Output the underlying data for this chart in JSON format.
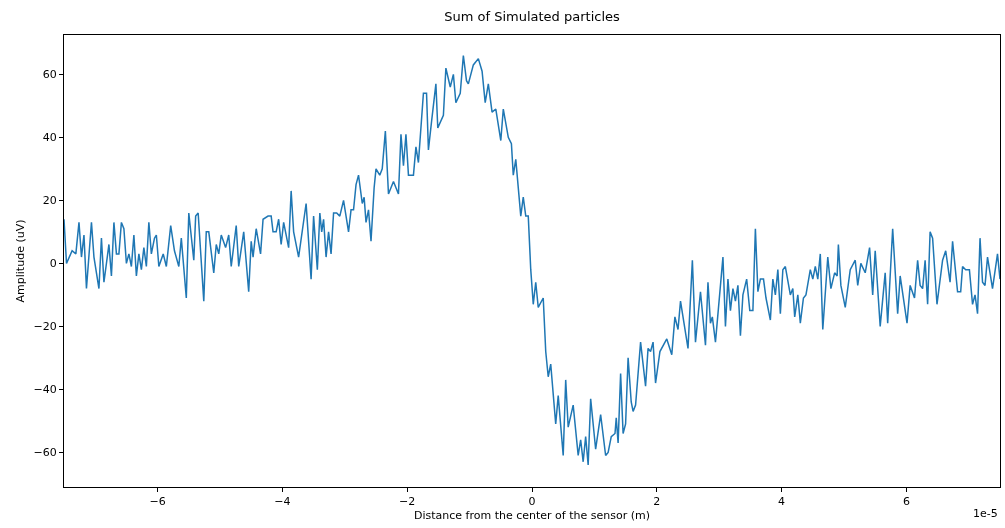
{
  "chart_data": {
    "type": "line",
    "title": "Sum of Simulated particles",
    "xlabel": "Distance from the center of the sensor (m)",
    "ylabel": "Amplitude (uV)",
    "annotations": [
      "1e-5"
    ],
    "xlim": [
      -7.5,
      7.5
    ],
    "ylim": [
      -71,
      72.5
    ],
    "xticks": [
      {
        "value": -6,
        "label": "−6"
      },
      {
        "value": -4,
        "label": "−4"
      },
      {
        "value": -2,
        "label": "−2"
      },
      0,
      2,
      4,
      6
    ],
    "yticks": [
      {
        "value": -60,
        "label": "−60"
      },
      {
        "value": -40,
        "label": "−40"
      },
      {
        "value": -20,
        "label": "−20"
      },
      0,
      20,
      40,
      60
    ],
    "grid": false,
    "legend": false,
    "marker": "none",
    "line_style": "solid",
    "x": [
      -7.5,
      -7.46,
      -7.37,
      -7.31,
      -7.26,
      -7.22,
      -7.18,
      -7.14,
      -7.06,
      -7.02,
      -6.94,
      -6.9,
      -6.86,
      -6.78,
      -6.74,
      -6.7,
      -6.66,
      -6.62,
      -6.58,
      -6.54,
      -6.5,
      -6.46,
      -6.42,
      -6.38,
      -6.34,
      -6.3,
      -6.26,
      -6.22,
      -6.18,
      -6.14,
      -6.1,
      -6.05,
      -6.02,
      -5.98,
      -5.91,
      -5.86,
      -5.79,
      -5.73,
      -5.66,
      -5.62,
      -5.54,
      -5.5,
      -5.42,
      -5.39,
      -5.35,
      -5.26,
      -5.22,
      -5.18,
      -5.1,
      -5.06,
      -5.02,
      -4.98,
      -4.91,
      -4.86,
      -4.82,
      -4.74,
      -4.7,
      -4.62,
      -4.54,
      -4.5,
      -4.47,
      -4.42,
      -4.35,
      -4.31,
      -4.23,
      -4.18,
      -4.15,
      -4.1,
      -4.06,
      -4.02,
      -3.98,
      -3.9,
      -3.86,
      -3.82,
      -3.74,
      -3.62,
      -3.54,
      -3.5,
      -3.44,
      -3.4,
      -3.37,
      -3.34,
      -3.3,
      -3.26,
      -3.22,
      -3.18,
      -3.13,
      -3.08,
      -3.02,
      -2.94,
      -2.9,
      -2.86,
      -2.82,
      -2.78,
      -2.72,
      -2.69,
      -2.66,
      -2.62,
      -2.58,
      -2.53,
      -2.5,
      -2.44,
      -2.4,
      -2.35,
      -2.3,
      -2.22,
      -2.14,
      -2.1,
      -2.06,
      -2.02,
      -1.98,
      -1.9,
      -1.86,
      -1.82,
      -1.74,
      -1.69,
      -1.66,
      -1.61,
      -1.54,
      -1.51,
      -1.42,
      -1.38,
      -1.31,
      -1.26,
      -1.22,
      -1.15,
      -1.1,
      -1.05,
      -1.02,
      -0.94,
      -0.86,
      -0.8,
      -0.75,
      -0.7,
      -0.64,
      -0.58,
      -0.5,
      -0.46,
      -0.38,
      -0.33,
      -0.3,
      -0.26,
      -0.18,
      -0.14,
      -0.1,
      -0.06,
      -0.02,
      0.02,
      0.06,
      0.1,
      0.18,
      0.22,
      0.26,
      0.3,
      0.38,
      0.42,
      0.5,
      0.54,
      0.58,
      0.66,
      0.74,
      0.78,
      0.82,
      0.86,
      0.9,
      0.94,
      1.02,
      1.1,
      1.18,
      1.22,
      1.27,
      1.33,
      1.35,
      1.38,
      1.42,
      1.46,
      1.5,
      1.54,
      1.59,
      1.62,
      1.66,
      1.74,
      1.82,
      1.86,
      1.9,
      1.94,
      1.98,
      2.05,
      2.16,
      2.24,
      2.29,
      2.34,
      2.38,
      2.5,
      2.57,
      2.62,
      2.7,
      2.78,
      2.82,
      2.86,
      2.89,
      2.94,
      3.06,
      3.1,
      3.14,
      3.18,
      3.22,
      3.26,
      3.3,
      3.34,
      3.38,
      3.44,
      3.49,
      3.54,
      3.58,
      3.62,
      3.66,
      3.71,
      3.75,
      3.82,
      3.86,
      3.9,
      3.94,
      3.98,
      4.02,
      4.06,
      4.14,
      4.18,
      4.21,
      4.26,
      4.3,
      4.35,
      4.39,
      4.46,
      4.5,
      4.54,
      4.58,
      4.62,
      4.66,
      4.74,
      4.79,
      4.85,
      4.89,
      4.91,
      4.95,
      5.02,
      5.1,
      5.18,
      5.22,
      5.27,
      5.34,
      5.41,
      5.46,
      5.5,
      5.58,
      5.66,
      5.7,
      5.78,
      5.86,
      5.9,
      6.01,
      6.06,
      6.13,
      6.18,
      6.22,
      6.26,
      6.3,
      6.34,
      6.38,
      6.42,
      6.49,
      6.58,
      6.63,
      6.7,
      6.74,
      6.82,
      6.87,
      6.9,
      6.95,
      7.01,
      7.06,
      7.1,
      7.14,
      7.18,
      7.22,
      7.26,
      7.3,
      7.38,
      7.46,
      7.5
    ],
    "series": [
      {
        "color": "#1f77b4",
        "values": [
          14,
          0,
          4,
          3,
          13,
          2,
          9,
          -8,
          13,
          2,
          -8,
          8,
          -6,
          6,
          -4,
          13,
          3,
          3,
          13,
          11,
          0,
          3,
          -1,
          9,
          -4,
          3,
          -2,
          5,
          -1,
          13,
          3,
          8,
          9,
          -1,
          3,
          -1,
          12,
          4,
          -1,
          8,
          -11,
          16,
          1,
          15,
          16,
          -12,
          10,
          10,
          -3,
          6,
          3,
          9,
          5,
          9,
          -1,
          12,
          -1,
          10,
          -9,
          7,
          2,
          11,
          3,
          14,
          15,
          15,
          10,
          10,
          14,
          6,
          13,
          5,
          23,
          10,
          2,
          19,
          -5,
          15,
          -2,
          16,
          10,
          14,
          2,
          10,
          3,
          16,
          16,
          15,
          20,
          10,
          17,
          17,
          25,
          28,
          19,
          21,
          13,
          17,
          7,
          24,
          30,
          28,
          30,
          42,
          22,
          26,
          22,
          41,
          31,
          41,
          28,
          28,
          37,
          32,
          54,
          54,
          36,
          45,
          57,
          43,
          47,
          62,
          56,
          60,
          51,
          54,
          66,
          58,
          57,
          63,
          65,
          61,
          51,
          57,
          48,
          49,
          39,
          49,
          40,
          38,
          28,
          33,
          15,
          21,
          15,
          15,
          -2,
          -13,
          -6,
          -14,
          -11,
          -28,
          -36,
          -32,
          -51,
          -42,
          -61,
          -37,
          -52,
          -45,
          -61,
          -56,
          -63,
          -55,
          -64,
          -43,
          -59,
          -48,
          -61,
          -60,
          -55,
          -54,
          -49,
          -57,
          -35,
          -54,
          -51,
          -30,
          -44,
          -47,
          -45,
          -25,
          -39,
          -27,
          -28,
          -25,
          -38,
          -28,
          -24,
          -29,
          -17,
          -21,
          -12,
          -27,
          1,
          -25,
          -9,
          -26,
          -6,
          -19,
          -17,
          -25,
          2,
          -20,
          -5,
          -15,
          -8,
          -12,
          -7,
          -23,
          -10,
          -5,
          -15,
          -15,
          11,
          -9,
          -5,
          -5,
          -11,
          -18,
          -5,
          -10,
          -2,
          -16,
          -2,
          -1,
          -10,
          -8,
          -17,
          -10,
          -19,
          -11,
          -10,
          -2,
          -5,
          -1,
          -5,
          3,
          -21,
          2,
          -8,
          -3,
          -4,
          6,
          -7,
          -14,
          -2,
          1,
          -7,
          0,
          -3,
          5,
          -10,
          4,
          -20,
          -3,
          -19,
          11,
          -16,
          -4,
          -19,
          -7,
          -11,
          1,
          -7,
          -8,
          1,
          -13,
          10,
          8,
          -13,
          1,
          4,
          -6,
          7,
          -9,
          -9,
          -1,
          -2,
          -2,
          -13,
          -10,
          -16,
          8,
          -6,
          -7,
          2,
          -8,
          3,
          -5
        ]
      }
    ]
  }
}
